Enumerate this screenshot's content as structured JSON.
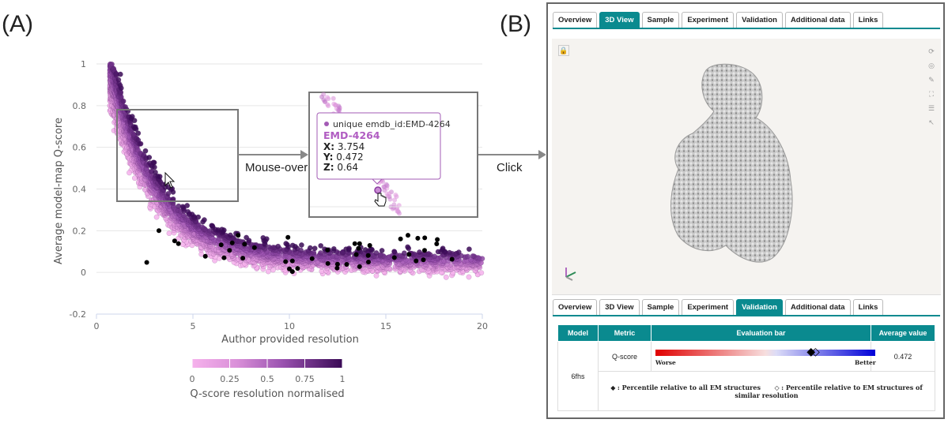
{
  "panel_a": {
    "label": "(A)"
  },
  "panel_b": {
    "label": "(B)"
  },
  "flow": {
    "mouseover": "Mouse-over",
    "click": "Click"
  },
  "chart_data": {
    "type": "scatter",
    "title": "",
    "xlabel": "Author provided resolution",
    "ylabel": "Average model-map Q-score",
    "xlim": [
      0,
      20
    ],
    "ylim": [
      -0.2,
      1
    ],
    "x_ticks": [
      0,
      5,
      10,
      15,
      20
    ],
    "y_ticks": [
      1,
      0.8,
      0.6,
      0.4,
      0.2,
      0,
      -0.2
    ],
    "color_scale": {
      "title": "Q-score resolution normalised",
      "ticks": [
        0,
        0.25,
        0.5,
        0.75,
        1
      ],
      "low_color": "#f6b2ec",
      "high_color": "#3a0a56"
    },
    "highlight_color": "#000000",
    "tooltip": {
      "line1": "unique emdb_id:EMD-4264",
      "id": "EMD-4264",
      "x_label": "X:",
      "x": 3.754,
      "y_label": "Y:",
      "y": 0.472,
      "z_label": "Z:",
      "z": 0.64
    }
  },
  "viewer": {
    "tabs_top": [
      "Overview",
      "3D View",
      "Sample",
      "Experiment",
      "Validation",
      "Additional data",
      "Links"
    ],
    "active_top": "3D View",
    "tabs_bottom": [
      "Overview",
      "3D View",
      "Sample",
      "Experiment",
      "Validation",
      "Additional data",
      "Links"
    ],
    "active_bottom": "Validation",
    "table": {
      "headers": [
        "Model",
        "Metric",
        "Evaluation bar",
        "Average value"
      ],
      "model": "6fhs",
      "metric": "Q-score",
      "worse": "Worse",
      "better": "Better",
      "average_value": "0.472",
      "percentile_all": 0.71,
      "percentile_similar": 0.73,
      "legend_all": ": Percentile relative to all EM structures",
      "legend_similar": ": Percentile relative to EM structures of similar resolution"
    }
  }
}
